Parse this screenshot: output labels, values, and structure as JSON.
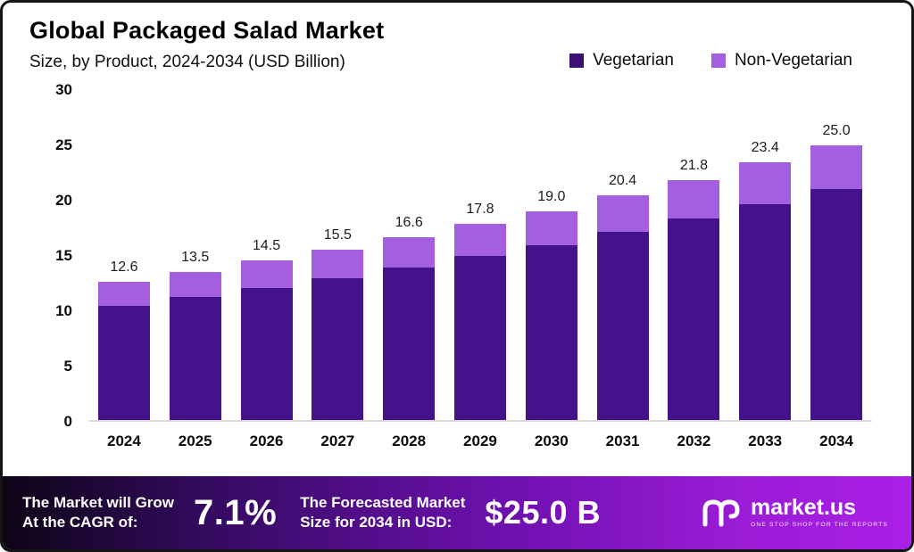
{
  "title": "Global Packaged Salad Market",
  "subtitle": "Size, by Product, 2024-2034 (USD Billion)",
  "legend": [
    {
      "label": "Vegetarian",
      "color": "#3c0f73"
    },
    {
      "label": "Non-Vegetarian",
      "color": "#a45fe0"
    }
  ],
  "chart_data": {
    "type": "bar",
    "stacked": true,
    "title": "Global Packaged Salad Market Size, by Product, 2024-2034 (USD Billion)",
    "categories": [
      "2024",
      "2025",
      "2026",
      "2027",
      "2028",
      "2029",
      "2030",
      "2031",
      "2032",
      "2033",
      "2034"
    ],
    "series": [
      {
        "name": "Vegetarian",
        "color": "#44128a",
        "values": [
          10.4,
          11.2,
          12.0,
          12.9,
          13.9,
          14.9,
          15.9,
          17.1,
          18.3,
          19.6,
          21.0
        ]
      },
      {
        "name": "Non-Vegetarian",
        "color": "#a45fe0",
        "values": [
          2.2,
          2.3,
          2.5,
          2.6,
          2.7,
          2.9,
          3.1,
          3.3,
          3.5,
          3.8,
          4.0
        ]
      }
    ],
    "totals": [
      12.6,
      13.5,
      14.5,
      15.5,
      16.6,
      17.8,
      19.0,
      20.4,
      21.8,
      23.4,
      25.0
    ],
    "xlabel": "",
    "ylabel": "",
    "ylim": [
      0,
      30
    ],
    "yticks": [
      0,
      5,
      10,
      15,
      20,
      25,
      30
    ],
    "grid": false,
    "legend_position": "top-right"
  },
  "footer": {
    "cagr_label_line1": "The Market will Grow",
    "cagr_label_line2": "At the CAGR of:",
    "cagr_value": "7.1%",
    "forecast_label_line1": "The Forecasted Market",
    "forecast_label_line2": "Size for 2034 in USD:",
    "forecast_value": "$25.0 B",
    "brand": "market.us",
    "brand_tagline": "ONE STOP SHOP FOR THE REPORTS"
  }
}
